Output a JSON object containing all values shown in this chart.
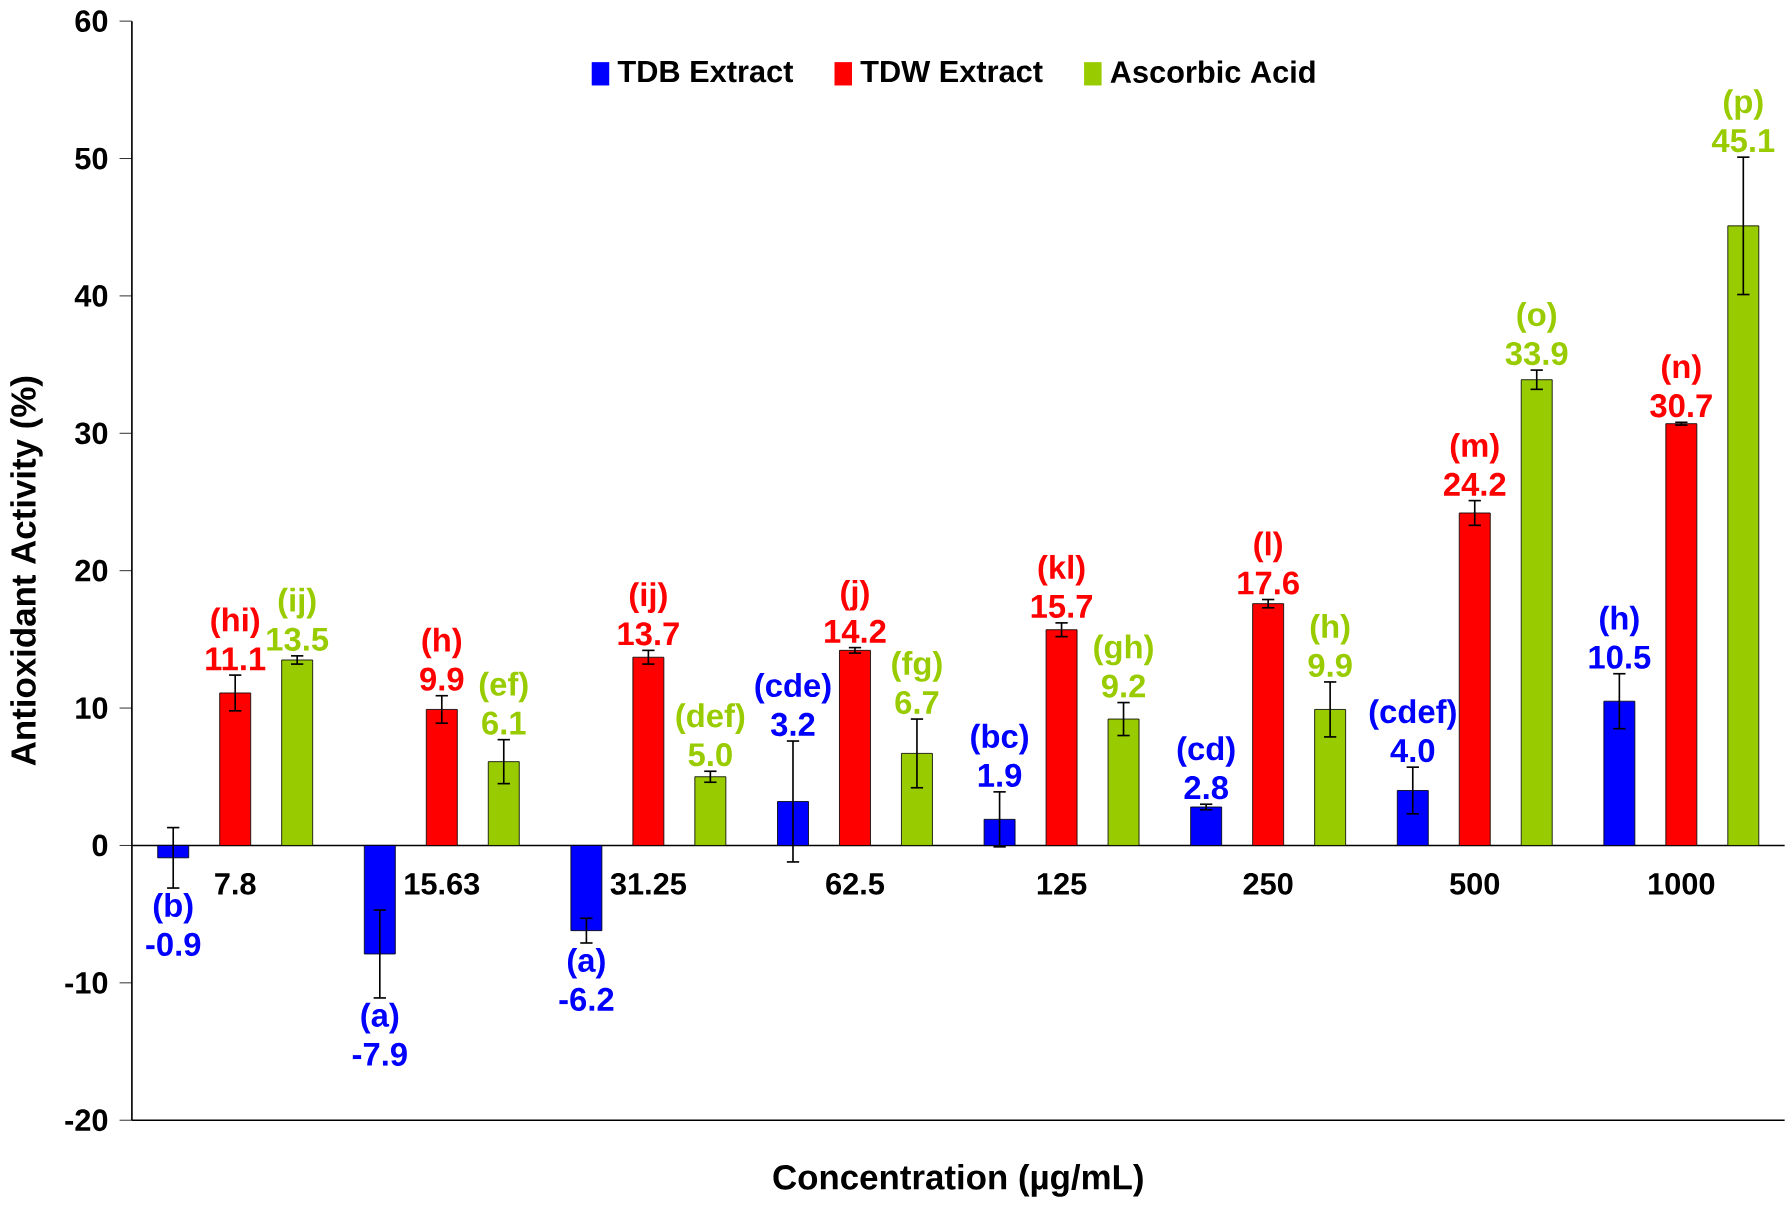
{
  "chart_data": {
    "type": "bar",
    "xlabel": "Concentration (µg/mL)",
    "ylabel": "Antioxidant Activity (%)",
    "categories": [
      "7.8",
      "15.63",
      "31.25",
      "62.5",
      "125",
      "250",
      "500",
      "1000"
    ],
    "series": [
      {
        "name": "TDB Extract",
        "color": "#0000ff",
        "values": [
          -0.9,
          -7.9,
          -6.2,
          3.2,
          1.9,
          2.8,
          4.0,
          10.5
        ],
        "errors": [
          2.2,
          3.2,
          0.9,
          4.4,
          2.0,
          0.2,
          1.7,
          2.0
        ],
        "value_labels": [
          "(b) -0.9",
          "(a) -7.9",
          "(a) -6.2",
          "(cde) 3.2",
          "(bc) 1.9",
          "(cd) 2.8",
          "(cdef) 4.0",
          "(h) 10.5"
        ]
      },
      {
        "name": "TDW Extract",
        "color": "#ff0000",
        "values": [
          11.1,
          9.9,
          13.7,
          14.2,
          15.7,
          17.6,
          24.2,
          30.7
        ],
        "errors": [
          1.3,
          1.0,
          0.5,
          0.2,
          0.5,
          0.3,
          0.9,
          0.1
        ],
        "value_labels": [
          "(hi) 11.1",
          "(h) 9.9",
          "(ij) 13.7",
          "(j) 14.2",
          "(kl) 15.7",
          "(l) 17.6",
          "(m) 24.2",
          "(n) 30.7"
        ]
      },
      {
        "name": "Ascorbic Acid",
        "color": "#99cc00",
        "values": [
          13.5,
          6.1,
          5.0,
          6.7,
          9.2,
          9.9,
          33.9,
          45.1
        ],
        "errors": [
          0.3,
          1.6,
          0.4,
          2.5,
          1.2,
          2.0,
          0.7,
          5.0
        ],
        "value_labels": [
          "(ij) 13.5",
          "(ef) 6.1",
          "(def) 5.0",
          "(fg) 6.7",
          "(gh) 9.2",
          "(h) 9.9",
          "(o) 33.9",
          "(p) 45.1"
        ]
      }
    ],
    "ylim": [
      -20,
      60
    ],
    "yticks": [
      -20,
      -10,
      0,
      10,
      20,
      30,
      40,
      50,
      60
    ],
    "legend": "top",
    "grid": false
  }
}
